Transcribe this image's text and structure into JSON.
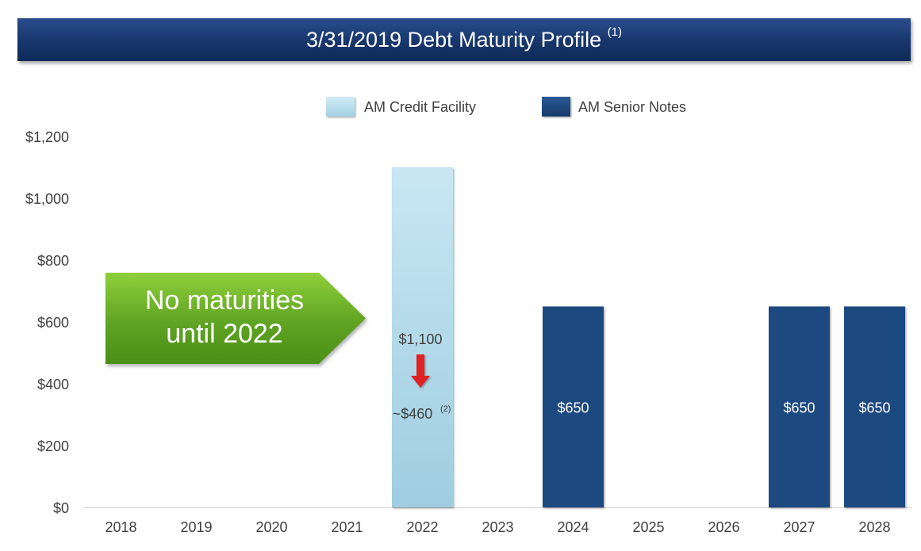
{
  "header": {
    "title": "3/31/2019 Debt Maturity Profile",
    "title_footnote": "(1)"
  },
  "callout": {
    "line1": "No maturities",
    "line2": "until 2022",
    "color": "#5fa423"
  },
  "annotation": {
    "from_label": "$1,100",
    "to_label": "~$460",
    "to_footnote": "(2)",
    "arrow_color": "#e02020"
  },
  "colors": {
    "credit_facility": "#bfe0ee",
    "senior_notes": "#1f4a80",
    "title_bar": "#17366c"
  },
  "chart_data": {
    "type": "bar",
    "title": "3/31/2019 Debt Maturity Profile",
    "xlabel": "",
    "ylabel": "",
    "ylim": [
      0,
      1200
    ],
    "y_ticks": [
      0,
      200,
      400,
      600,
      800,
      1000,
      1200
    ],
    "y_tick_labels": [
      "$0",
      "$200",
      "$400",
      "$600",
      "$800",
      "$1,000",
      "$1,200"
    ],
    "grid": false,
    "legend_position": "top-center",
    "categories": [
      "2018",
      "2019",
      "2020",
      "2021",
      "2022",
      "2023",
      "2024",
      "2025",
      "2026",
      "2027",
      "2028"
    ],
    "series": [
      {
        "name": "AM Credit Facility",
        "values": [
          0,
          0,
          0,
          0,
          1100,
          0,
          0,
          0,
          0,
          0,
          0
        ],
        "data_labels": [
          null,
          null,
          null,
          null,
          null,
          null,
          null,
          null,
          null,
          null,
          null
        ]
      },
      {
        "name": "AM Senior Notes",
        "values": [
          0,
          0,
          0,
          0,
          0,
          0,
          650,
          0,
          0,
          650,
          650
        ],
        "data_labels": [
          null,
          null,
          null,
          null,
          null,
          null,
          "$650",
          null,
          null,
          "$650",
          "$650"
        ]
      }
    ]
  }
}
